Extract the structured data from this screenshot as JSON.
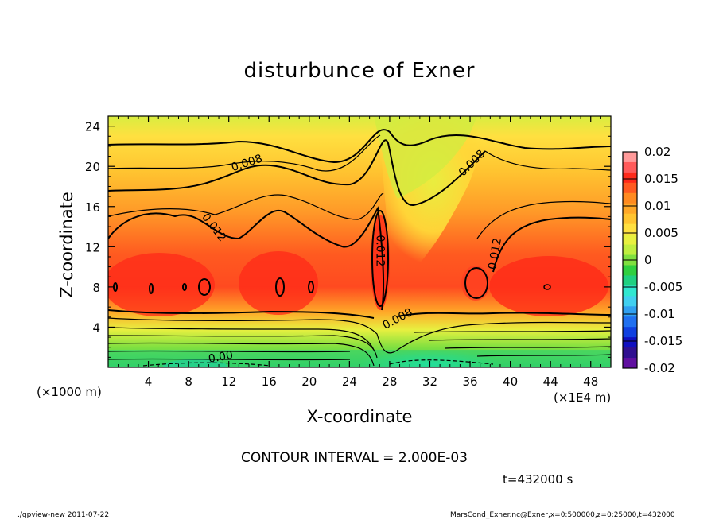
{
  "chart_data": {
    "type": "heatmap",
    "title": "disturbunce of Exner",
    "xlabel": "X-coordinate",
    "ylabel": "Z-coordinate",
    "xunit_left": "(×1000 m)",
    "xunit_right": "(×1E4 m)",
    "xlim": [
      0,
      50
    ],
    "ylim": [
      0,
      25
    ],
    "x_ticks": [
      "4",
      "8",
      "12",
      "16",
      "20",
      "24",
      "28",
      "32",
      "36",
      "40",
      "44",
      "48"
    ],
    "x_tick_values": [
      4,
      8,
      12,
      16,
      20,
      24,
      28,
      32,
      36,
      40,
      44,
      48
    ],
    "y_ticks": [
      "4",
      "8",
      "12",
      "16",
      "20",
      "24"
    ],
    "y_tick_values": [
      4,
      8,
      12,
      16,
      20,
      24
    ],
    "colorbar": {
      "labels": [
        "0.02",
        "0.015",
        "0.01",
        "0.005",
        "0",
        "-0.005",
        "-0.01",
        "-0.015",
        "-0.02"
      ],
      "values": [
        0.02,
        0.015,
        0.01,
        0.005,
        0,
        -0.005,
        -0.01,
        -0.015,
        -0.02
      ],
      "colors": [
        "#ff9a9a",
        "#ff5a5a",
        "#ff2a1a",
        "#ff5a20",
        "#ff8a20",
        "#ffa828",
        "#ffc430",
        "#ffe040",
        "#e8f040",
        "#c0ee40",
        "#80e040",
        "#30d040",
        "#20d080",
        "#30e8d0",
        "#40d0f0",
        "#30a0f0",
        "#2070f0",
        "#1040e0",
        "#1010c0",
        "#301090",
        "#6010a0"
      ]
    },
    "contour_labels": [
      {
        "text": "0.008",
        "x": 13.8,
        "z": 20.3,
        "rotate": -18
      },
      {
        "text": "0.008",
        "x": 36.2,
        "z": 20.3,
        "rotate": -45
      },
      {
        "text": "0.012",
        "x": 10.5,
        "z": 13.9,
        "rotate": 52
      },
      {
        "text": "0.012",
        "x": 27.0,
        "z": 11.6,
        "rotate": 90
      },
      {
        "text": "0.012",
        "x": 38.5,
        "z": 11.3,
        "rotate": -80
      },
      {
        "text": "0.008",
        "x": 28.8,
        "z": 4.8,
        "rotate": -28
      },
      {
        "text": "0.00",
        "x": 11.2,
        "z": 1.0,
        "rotate": -10
      }
    ],
    "grid": false,
    "legend": "right"
  },
  "contour_interval": "CONTOUR INTERVAL = 2.000E-03",
  "time_label": "t=432000 s",
  "footer_left": "./gpview-new  2011-07-22",
  "footer_right": "MarsCond_Exner.nc@Exner,x=0:500000,z=0:25000,t=432000"
}
